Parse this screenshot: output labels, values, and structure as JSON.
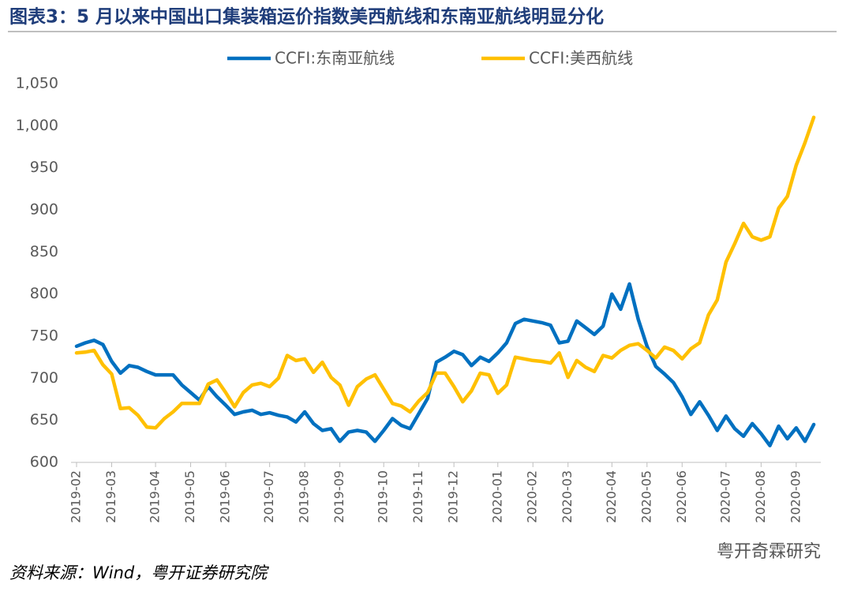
{
  "chart_data": {
    "type": "line",
    "title": "图表3：5 月以来中国出口集装箱运价指数美西航线和东南亚航线明显分化",
    "source": "资料来源：Wind，粤开证券研究院",
    "watermark": "粤开奇霖研究",
    "categories": [
      "2019-02",
      null,
      null,
      null,
      "2019-03",
      null,
      null,
      null,
      null,
      "2019-04",
      null,
      null,
      null,
      "2019-05",
      null,
      null,
      null,
      "2019-06",
      null,
      null,
      null,
      null,
      "2019-07",
      null,
      null,
      null,
      "2019-08",
      null,
      null,
      null,
      "2019-09",
      null,
      null,
      null,
      null,
      "2019-10",
      null,
      null,
      null,
      "2019-11",
      null,
      null,
      null,
      "2019-12",
      null,
      null,
      null,
      null,
      "2020-01",
      null,
      null,
      null,
      "2020-02",
      null,
      null,
      null,
      "2020-03",
      null,
      null,
      null,
      null,
      "2020-04",
      null,
      null,
      null,
      "2020-05",
      null,
      null,
      null,
      "2020-06",
      null,
      null,
      null,
      null,
      "2020-07",
      null,
      null,
      null,
      "2020-08",
      null,
      null,
      null,
      "2020-09",
      null,
      null
    ],
    "series": [
      {
        "name": "CCFI:东南亚航线",
        "color": "#0070c0",
        "values": [
          738,
          742,
          745,
          740,
          720,
          706,
          715,
          713,
          708,
          704,
          704,
          704,
          692,
          683,
          674,
          690,
          678,
          668,
          657,
          660,
          662,
          657,
          659,
          656,
          654,
          648,
          660,
          646,
          638,
          640,
          625,
          636,
          638,
          636,
          625,
          638,
          652,
          644,
          640,
          658,
          676,
          719,
          725,
          732,
          728,
          715,
          725,
          720,
          730,
          742,
          765,
          770,
          768,
          766,
          763,
          742,
          744,
          768,
          760,
          752,
          762,
          800,
          782,
          812,
          770,
          738,
          714,
          705,
          695,
          678,
          657,
          672,
          656,
          638,
          655,
          640,
          631,
          646,
          634,
          620,
          643,
          628,
          641,
          625,
          645
        ]
      },
      {
        "name": "CCFI:美西航线",
        "color": "#ffc000",
        "values": [
          730,
          731,
          733,
          716,
          705,
          664,
          665,
          656,
          642,
          641,
          652,
          660,
          670,
          670,
          670,
          693,
          698,
          683,
          666,
          683,
          692,
          694,
          690,
          700,
          727,
          721,
          723,
          707,
          719,
          701,
          692,
          668,
          690,
          699,
          704,
          687,
          670,
          667,
          660,
          673,
          683,
          706,
          706,
          690,
          672,
          685,
          706,
          704,
          682,
          692,
          725,
          723,
          721,
          720,
          718,
          730,
          701,
          721,
          713,
          708,
          727,
          724,
          733,
          739,
          741,
          733,
          724,
          737,
          733,
          723,
          735,
          742,
          775,
          793,
          838,
          860,
          884,
          868,
          864,
          868,
          902,
          916,
          953,
          980,
          1010
        ]
      }
    ],
    "ylim": [
      600,
      1050
    ],
    "yticks": [
      600,
      650,
      700,
      750,
      800,
      850,
      900,
      950,
      {
        "value": 1000,
        "label": "1,000"
      },
      {
        "value": 1050,
        "label": "1,050"
      }
    ],
    "legend": "top"
  }
}
